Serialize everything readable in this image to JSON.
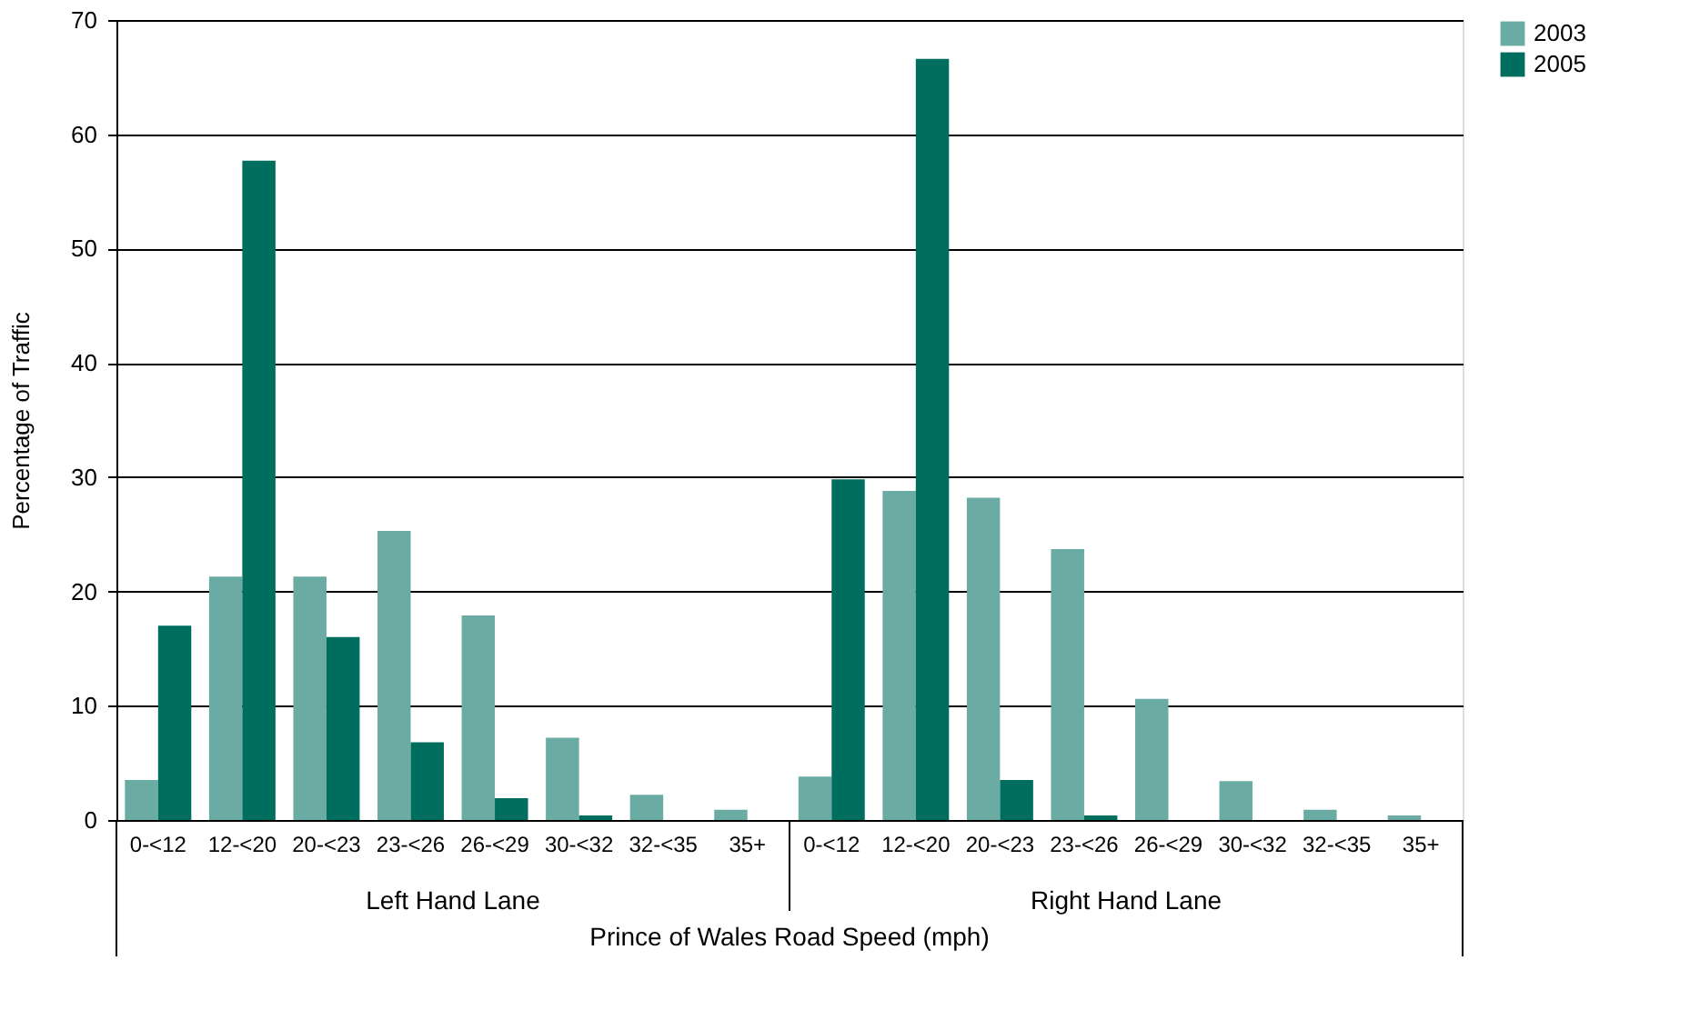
{
  "chart_data": {
    "type": "bar",
    "xlabel": "Prince of Wales Road Speed (mph)",
    "ylabel": "Percentage of Traffic",
    "categories": [
      "0-<12",
      "12-<20",
      "20-<23",
      "23-<26",
      "26-<29",
      "30-<32",
      "32-<35",
      "35+",
      "0-<12",
      "12-<20",
      "20-<23",
      "23-<26",
      "26-<29",
      "30-<32",
      "32-<35",
      "35+"
    ],
    "series": [
      {
        "name": "2003",
        "color": "#6aaba3",
        "values": [
          3.5,
          21.3,
          21.3,
          25.3,
          17.9,
          7.2,
          2.2,
          0.9,
          3.8,
          28.8,
          28.2,
          23.7,
          10.6,
          3.4,
          0.9,
          0.4
        ]
      },
      {
        "name": "2005",
        "color": "#006e5f",
        "values": [
          17.0,
          57.7,
          16.0,
          6.8,
          1.9,
          0.4,
          0,
          0,
          29.8,
          66.6,
          3.5,
          0.4,
          0,
          0,
          0,
          0
        ]
      }
    ],
    "annotations": [
      "Left Hand Lane",
      "Right Hand Lane"
    ],
    "ylim": [
      0,
      70
    ],
    "yticks": [
      0,
      10,
      20,
      30,
      40,
      50,
      60,
      70
    ],
    "grid": "y",
    "legend": "top right"
  }
}
